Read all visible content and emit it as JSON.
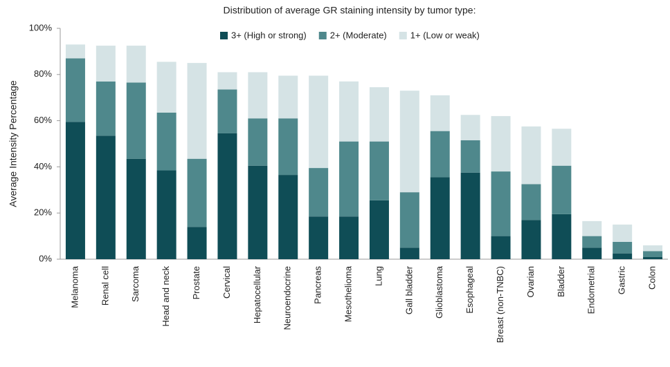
{
  "chart_data": {
    "type": "stacked_bar",
    "title": "Distribution of average GR staining intensity by tumor type:",
    "y_label": "Average Intensity Percentage",
    "categories": [
      "Melanoma",
      "Renal cell",
      "Sarcoma",
      "Head and neck",
      "Prostate",
      "Cervical",
      "Hepatocellular",
      "Neuroendocrine",
      "Pancreas",
      "Mesothelioma",
      "Lung",
      "Gall bladder",
      "Glioblastoma",
      "Esophageal",
      "Breast (non-TNBC)",
      "Ovarian",
      "Bladder",
      "Endometrial",
      "Gastric",
      "Colon"
    ],
    "series": [
      {
        "name": "3+ (High or strong)",
        "color": "#0f4d56",
        "values": [
          59.5,
          53.5,
          43.5,
          38.5,
          14,
          54.5,
          40.5,
          36.5,
          18.5,
          18.5,
          25.5,
          5,
          35.5,
          37.5,
          10,
          17,
          19.5,
          5,
          2.5,
          1
        ]
      },
      {
        "name": "2+ (Moderate)",
        "color": "#4f888c",
        "values": [
          27.5,
          23.5,
          33,
          25,
          29.5,
          19,
          20.5,
          24.5,
          21,
          32.5,
          25.5,
          24,
          20,
          14,
          28,
          15.5,
          21,
          5,
          5,
          2.5
        ]
      },
      {
        "name": "1+ (Low or weak)",
        "color": "#d5e3e5",
        "values": [
          6,
          15.5,
          16,
          22,
          41.5,
          7.5,
          20,
          18.5,
          40,
          26,
          23.5,
          44,
          15.5,
          11,
          24,
          25,
          16,
          6.5,
          7.5,
          2.5
        ]
      }
    ],
    "ylim": [
      0,
      100
    ],
    "yticks": [
      {
        "value": 0,
        "label": "0%"
      },
      {
        "value": 20,
        "label": "20%"
      },
      {
        "value": 40,
        "label": "40%"
      },
      {
        "value": 60,
        "label": "60%"
      },
      {
        "value": 80,
        "label": "80%"
      },
      {
        "value": 100,
        "label": "100%"
      }
    ]
  }
}
